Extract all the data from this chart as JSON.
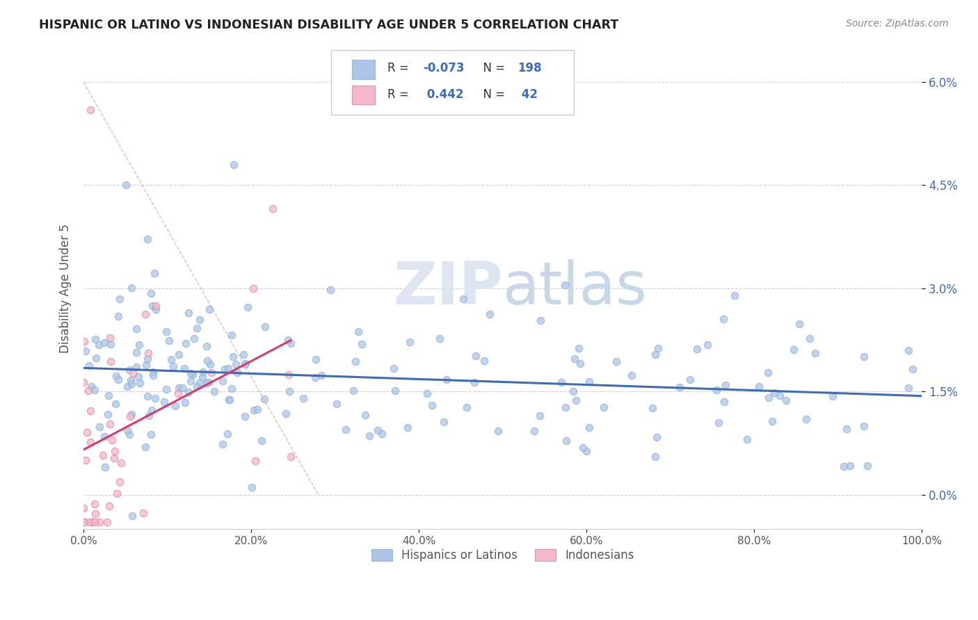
{
  "title": "HISPANIC OR LATINO VS INDONESIAN DISABILITY AGE UNDER 5 CORRELATION CHART",
  "source": "Source: ZipAtlas.com",
  "ylabel": "Disability Age Under 5",
  "ytick_vals": [
    0.0,
    1.5,
    3.0,
    4.5,
    6.0
  ],
  "xlim": [
    0,
    100
  ],
  "ylim": [
    -0.5,
    6.5
  ],
  "legend_label1": "Hispanics or Latinos",
  "legend_label2": "Indonesians",
  "r1": "-0.073",
  "n1": "198",
  "r2": "0.442",
  "n2": "42",
  "dot_color1": "#adc6e8",
  "dot_color2": "#f4b8cb",
  "line_color1": "#3d6bb5",
  "line_color2": "#d63a6e",
  "ref_line_color": "#d0b8c8",
  "background_color": "#ffffff",
  "grid_color": "#d0d0d0",
  "ytick_color": "#3d6bb5",
  "title_color": "#222222",
  "source_color": "#888888"
}
